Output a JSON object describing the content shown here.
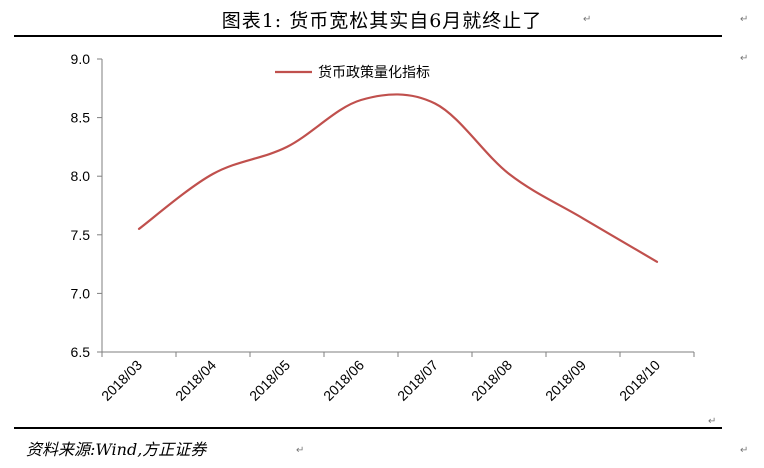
{
  "figure": {
    "title": "图表1:  货币宽松其实自6月就终止了",
    "source": "资料来源:Wind,方正证券",
    "paragraph_mark": "↵"
  },
  "chart_data": {
    "type": "line",
    "categories": [
      "2018/03",
      "2018/04",
      "2018/05",
      "2018/06",
      "2018/07",
      "2018/08",
      "2018/09",
      "2018/10"
    ],
    "series": [
      {
        "name": "货币政策量化指标",
        "values": [
          7.55,
          8.02,
          8.25,
          8.65,
          8.62,
          8.02,
          7.64,
          7.27
        ],
        "color": "#c0504d"
      }
    ],
    "ylim": [
      6.5,
      9.0
    ],
    "yticks": [
      "6.5",
      "7.0",
      "7.5",
      "8.0",
      "8.5",
      "9.0"
    ],
    "xlabel": "",
    "ylabel": "",
    "grid": false,
    "legend": "top-center",
    "axis_color": "#7f7f7f"
  }
}
